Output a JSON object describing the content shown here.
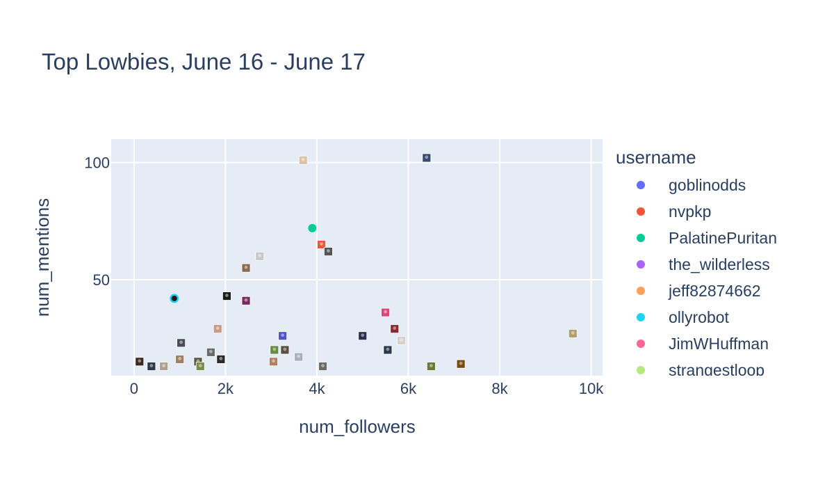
{
  "chart_data": {
    "type": "scatter",
    "title": "Top Lowbies, June 16 - June 17",
    "xlabel": "num_followers",
    "ylabel": "num_mentions",
    "xlim": [
      -500,
      10250
    ],
    "ylim": [
      9,
      110
    ],
    "x_ticks": [
      0,
      2000,
      4000,
      6000,
      8000,
      10000
    ],
    "x_tick_labels": [
      "0",
      "2k",
      "4k",
      "6k",
      "8k",
      "10k"
    ],
    "y_ticks": [
      50,
      100
    ],
    "y_tick_labels": [
      "50",
      "100"
    ],
    "grid": true,
    "plot_background": "#e5ecf6",
    "legend": {
      "title": "username",
      "placement": "right",
      "entries": [
        {
          "name": "goblinodds",
          "color": "#636efa"
        },
        {
          "name": "nvpkp",
          "color": "#ef553b"
        },
        {
          "name": "PalatinePuritan",
          "color": "#00cc96"
        },
        {
          "name": "the_wilderless",
          "color": "#ab63fa"
        },
        {
          "name": "jeff82874662",
          "color": "#ffa15a"
        },
        {
          "name": "ollyrobot",
          "color": "#19d3f3"
        },
        {
          "name": "JimWHuffman",
          "color": "#ff6692"
        },
        {
          "name": "strangestloop",
          "color": "#b6e880"
        }
      ]
    },
    "points": [
      {
        "x": 3700,
        "y": 101,
        "color": "#d9c4a8"
      },
      {
        "x": 6400,
        "y": 102,
        "color": "#3a4a6a"
      },
      {
        "x": 3900,
        "y": 72,
        "color": "#00cc96"
      },
      {
        "x": 4100,
        "y": 65,
        "color": "#ef553b"
      },
      {
        "x": 4250,
        "y": 62,
        "color": "#555555"
      },
      {
        "x": 2750,
        "y": 60,
        "color": "#c8c8c8"
      },
      {
        "x": 2450,
        "y": 55,
        "color": "#8a6a50"
      },
      {
        "x": 880,
        "y": 42,
        "color": "#19d3f3"
      },
      {
        "x": 2030,
        "y": 43,
        "color": "#1a1a1a"
      },
      {
        "x": 2450,
        "y": 41,
        "color": "#7a2a60"
      },
      {
        "x": 5500,
        "y": 36,
        "color": "#e0457a"
      },
      {
        "x": 1830,
        "y": 29,
        "color": "#c79a8a"
      },
      {
        "x": 5700,
        "y": 29,
        "color": "#8a2a30"
      },
      {
        "x": 3250,
        "y": 26,
        "color": "#5050d0"
      },
      {
        "x": 5000,
        "y": 26,
        "color": "#2a3050"
      },
      {
        "x": 9600,
        "y": 27,
        "color": "#b0a070"
      },
      {
        "x": 5850,
        "y": 24,
        "color": "#d8d0c8"
      },
      {
        "x": 1030,
        "y": 23,
        "color": "#4a4a5a"
      },
      {
        "x": 3070,
        "y": 20,
        "color": "#6a8a40"
      },
      {
        "x": 3300,
        "y": 20,
        "color": "#5a5040"
      },
      {
        "x": 5550,
        "y": 20,
        "color": "#2a3a4a"
      },
      {
        "x": 1680,
        "y": 19,
        "color": "#6a6a6a"
      },
      {
        "x": 3600,
        "y": 17,
        "color": "#a8b0c0"
      },
      {
        "x": 1000,
        "y": 16,
        "color": "#a08060"
      },
      {
        "x": 1900,
        "y": 16,
        "color": "#2a2a2a"
      },
      {
        "x": 120,
        "y": 15,
        "color": "#3a2a20"
      },
      {
        "x": 3050,
        "y": 15,
        "color": "#b08060"
      },
      {
        "x": 1400,
        "y": 15,
        "color": "#5a5a40"
      },
      {
        "x": 380,
        "y": 13,
        "color": "#2a3a4a"
      },
      {
        "x": 650,
        "y": 13,
        "color": "#b0a090"
      },
      {
        "x": 1450,
        "y": 13,
        "color": "#7a8a50"
      },
      {
        "x": 4130,
        "y": 13,
        "color": "#6a6a6a"
      },
      {
        "x": 6500,
        "y": 13,
        "color": "#6a7a30"
      },
      {
        "x": 7150,
        "y": 14,
        "color": "#7a4a10"
      }
    ]
  }
}
